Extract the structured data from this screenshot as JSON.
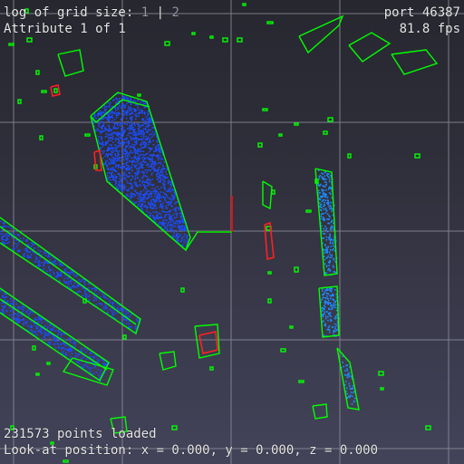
{
  "overlay": {
    "grid_label": "log of grid size:",
    "grid_value_a": "1",
    "grid_separator": "|",
    "grid_value_b": "2",
    "attribute": "Attribute 1 of 1",
    "port": "port 46387",
    "fps": "81.8 fps",
    "points_loaded": "231573 points loaded",
    "look_at": "Look-at position: x = 0.000, y = 0.000, z = 0.000"
  },
  "colors": {
    "background_top": "#272730",
    "background_bottom": "#43435a",
    "grid_lines": "#8c8c99",
    "bounding_boxes": "#00ff00",
    "points": "#1a4dff",
    "highlight": "#ff2020",
    "axis_red": "#e01010",
    "axis_green": "#10c010",
    "text": "#e8e8e8"
  }
}
